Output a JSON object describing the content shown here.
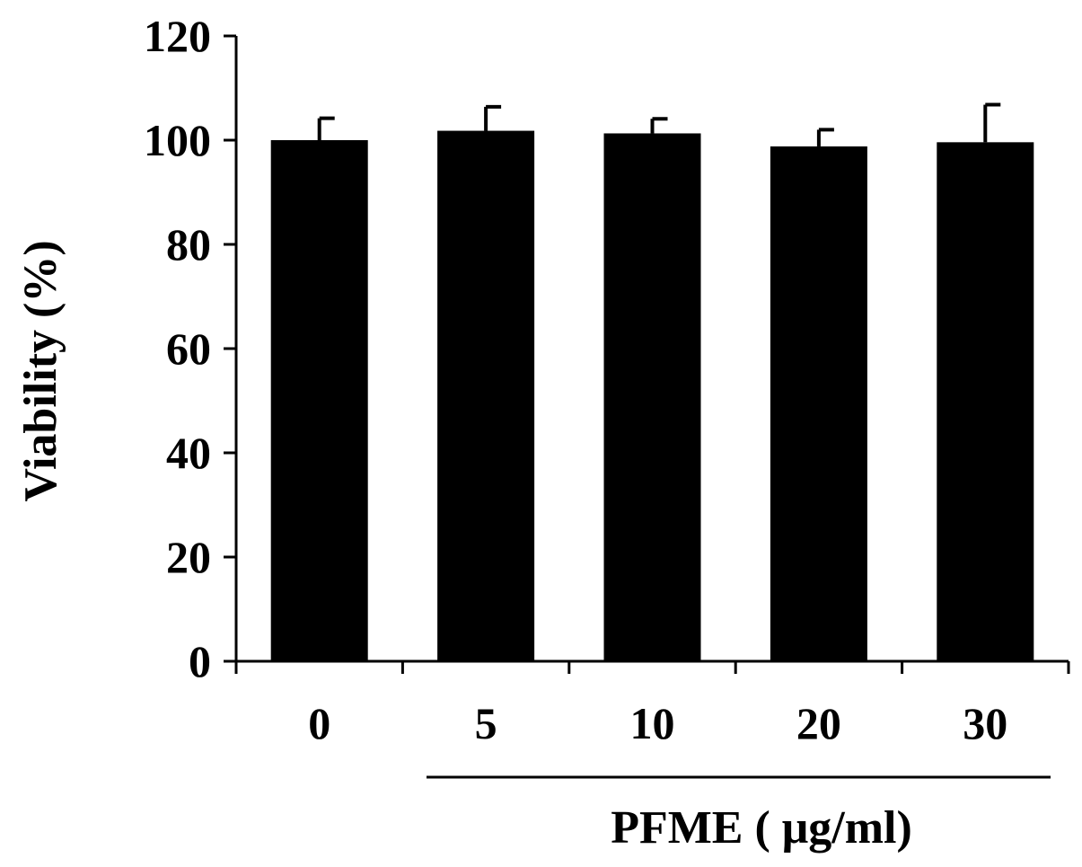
{
  "chart_data": {
    "type": "bar",
    "categories": [
      "0",
      "5",
      "10",
      "20",
      "30"
    ],
    "values": [
      100,
      101.8,
      101.3,
      98.8,
      99.6
    ],
    "errors": [
      4.2,
      4.6,
      2.8,
      3.2,
      7.2
    ],
    "ylabel": "Viability (%)",
    "xlabel": "PFME ( μg/ml)",
    "ylim": [
      0,
      120
    ],
    "yticks": [
      "0",
      "20",
      "40",
      "60",
      "80",
      "100",
      "120"
    ],
    "bar_color": "#000000",
    "grid": false,
    "legend": "none"
  }
}
